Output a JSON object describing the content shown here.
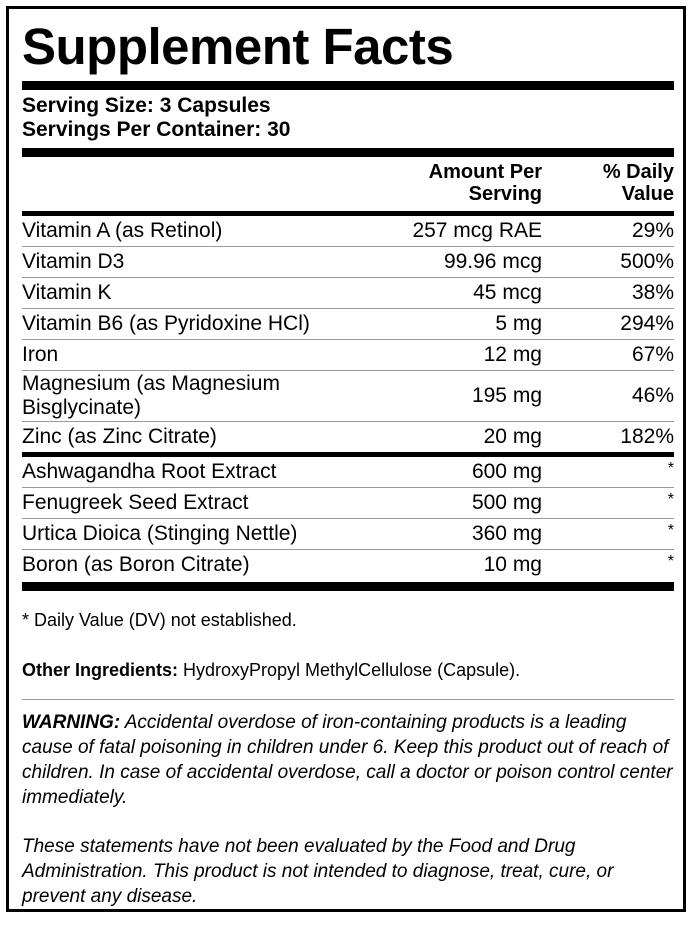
{
  "title": "Supplement Facts",
  "serving_size": "Serving Size: 3 Capsules",
  "servings_per_container": "Servings Per Container: 30",
  "headers": {
    "amount_line1": "Amount Per",
    "amount_line2": "Serving",
    "dv_line1": "% Daily",
    "dv_line2": "Value"
  },
  "vitamins": [
    {
      "name": "Vitamin A (as Retinol)",
      "amount": "257 mcg RAE",
      "dv": "29%"
    },
    {
      "name": "Vitamin D3",
      "amount": "99.96 mcg",
      "dv": "500%"
    },
    {
      "name": "Vitamin K",
      "amount": "45 mcg",
      "dv": "38%"
    },
    {
      "name": "Vitamin B6 (as Pyridoxine HCl)",
      "amount": "5 mg",
      "dv": "294%"
    },
    {
      "name": "Iron",
      "amount": "12 mg",
      "dv": "67%"
    },
    {
      "name_line1": "Magnesium (as Magnesium",
      "name_line2": "Bisglycinate)",
      "amount": "195 mg",
      "dv": "46%"
    },
    {
      "name": "Zinc (as Zinc Citrate)",
      "amount": "20 mg",
      "dv": "182%"
    }
  ],
  "extracts": [
    {
      "name": "Ashwagandha Root Extract",
      "amount": "600 mg",
      "dv": "*"
    },
    {
      "name": "Fenugreek Seed Extract",
      "amount": "500 mg",
      "dv": "*"
    },
    {
      "name": "Urtica Dioica (Stinging Nettle)",
      "amount": "360 mg",
      "dv": "*"
    },
    {
      "name": "Boron (as Boron Citrate)",
      "amount": "10 mg",
      "dv": "*"
    }
  ],
  "footnote": "* Daily Value (DV) not established.",
  "other_ingredients": {
    "label": "Other Ingredients:",
    "text": " HydroxyPropyl MethylCellulose (Capsule)."
  },
  "warning": {
    "label": "WARNING:",
    "text": " Accidental overdose of iron-containing products is a leading cause of fatal poisoning in children under 6. Keep this product out of reach of children. In case of accidental overdose, call a doctor or poison control center immediately."
  },
  "disclaimer": "These statements have not been evaluated by the Food and Drug Administration. This product is not intended to diagnose, treat, cure, or prevent any disease."
}
